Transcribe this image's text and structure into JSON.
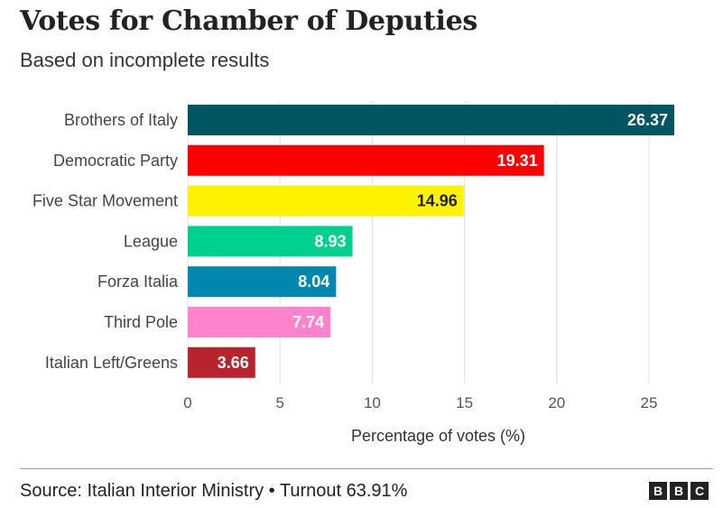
{
  "header": {
    "title": "Votes for Chamber of Deputies",
    "subtitle": "Based on incomplete results"
  },
  "footer": {
    "source": "Source: Italian Interior Ministry • Turnout 63.91%",
    "logo_letters": [
      "B",
      "B",
      "C"
    ]
  },
  "chart_data": {
    "type": "bar",
    "orientation": "horizontal",
    "title": "Votes for Chamber of Deputies",
    "subtitle": "Based on incomplete results",
    "xlabel": "Percentage of votes (%)",
    "ylabel": "",
    "xlim": [
      0,
      26.37
    ],
    "xticks": [
      0,
      5,
      10,
      15,
      20,
      25
    ],
    "grid": "vertical",
    "legend": "none",
    "categories": [
      "Brothers of Italy",
      "Democratic Party",
      "Five Star Movement",
      "League",
      "Forza Italia",
      "Third Pole",
      "Italian Left/Greens"
    ],
    "values": [
      26.37,
      19.31,
      14.96,
      8.93,
      8.04,
      7.74,
      3.66
    ],
    "value_labels": [
      "26.37",
      "19.31",
      "14.96",
      "8.93",
      "8.04",
      "7.74",
      "3.66"
    ],
    "colors": [
      "#005563",
      "#ff0000",
      "#fff200",
      "#00d08f",
      "#0087b0",
      "#ff83cc",
      "#b8232e"
    ],
    "label_colors": [
      "#ffffff",
      "#ffffff",
      "#222222",
      "#ffffff",
      "#ffffff",
      "#ffffff",
      "#ffffff"
    ]
  }
}
